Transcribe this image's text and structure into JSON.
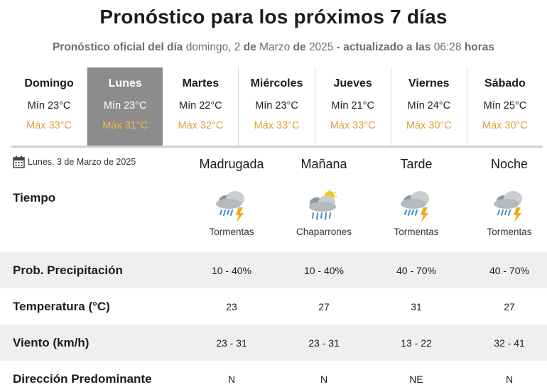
{
  "header": {
    "title": "Pronóstico para los próximos 7 días",
    "subtitle_prefix": "Pronóstico oficial del día",
    "subtitle_day": "domingo, 2",
    "subtitle_de1": "de",
    "subtitle_month": "Marzo",
    "subtitle_de2": "de",
    "subtitle_year": "2025",
    "subtitle_updated": "- actualizado a las",
    "subtitle_time": "06:28",
    "subtitle_horas": "horas"
  },
  "days": [
    {
      "name": "Domingo",
      "min": "Mín 23°C",
      "max": "Máx 33°C",
      "selected": false
    },
    {
      "name": "Lunes",
      "min": "Mín 23°C",
      "max": "Máx 31°C",
      "selected": true
    },
    {
      "name": "Martes",
      "min": "Mín 22°C",
      "max": "Máx 32°C",
      "selected": false
    },
    {
      "name": "Miércoles",
      "min": "Mín 23°C",
      "max": "Máx 33°C",
      "selected": false
    },
    {
      "name": "Jueves",
      "min": "Mín 21°C",
      "max": "Máx 33°C",
      "selected": false
    },
    {
      "name": "Viernes",
      "min": "Mín 24°C",
      "max": "Máx 30°C",
      "selected": false
    },
    {
      "name": "Sábado",
      "min": "Mín 25°C",
      "max": "Máx 30°C",
      "selected": false
    }
  ],
  "detail": {
    "date": "Lunes, 3 de Marzo de 2025",
    "periods": [
      "Madrugada",
      "Mañana",
      "Tarde",
      "Noche"
    ],
    "tiempo_label": "Tiempo",
    "weather": [
      {
        "icon": "storm-icon",
        "desc": "Tormentas"
      },
      {
        "icon": "showers-icon",
        "desc": "Chaparrones"
      },
      {
        "icon": "storm-icon",
        "desc": "Tormentas"
      },
      {
        "icon": "storm-icon",
        "desc": "Tormentas"
      }
    ],
    "rows": [
      {
        "label": "Prob. Precipitación",
        "values": [
          "10 - 40%",
          "10 - 40%",
          "40 - 70%",
          "40 - 70%"
        ]
      },
      {
        "label": "Temperatura (°C)",
        "values": [
          "23",
          "27",
          "31",
          "27"
        ]
      },
      {
        "label": "Viento (km/h)",
        "values": [
          "23 - 31",
          "23 - 31",
          "13 - 22",
          "32 - 41"
        ]
      },
      {
        "label": "Dirección Predominante",
        "values": [
          "N",
          "N",
          "NE",
          "N"
        ]
      }
    ]
  },
  "colors": {
    "max_temp": "#e0a33a",
    "selected_bg": "#8c8c8c",
    "row_shade": "#efefef"
  }
}
